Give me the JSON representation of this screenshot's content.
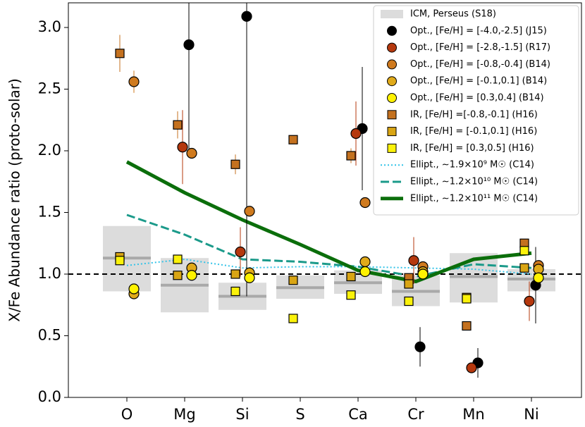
{
  "chart_data": {
    "type": "scatter",
    "y_label": "X/Fe Abundance ratio (proto-solar)",
    "categories": [
      "O",
      "Mg",
      "Si",
      "S",
      "Ca",
      "Cr",
      "Mn",
      "Ni"
    ],
    "ylim": [
      0,
      3.2
    ],
    "yticks": [
      {
        "value": 0,
        "label": "0.0"
      },
      0.5,
      {
        "value": 1,
        "label": "1.0"
      },
      1.5,
      {
        "value": 2,
        "label": "2.0"
      },
      2.5,
      {
        "value": 3,
        "label": "3.0"
      }
    ],
    "reference_line": 1,
    "series": [
      {
        "name": "ICM, Perseus (S18)",
        "kind": "box",
        "color": "#dcdcdc",
        "median_color": "#a9a9a9",
        "values": [
          1.13,
          0.91,
          0.82,
          0.89,
          0.93,
          0.86,
          0.98,
          0.96
        ],
        "low": [
          0.86,
          0.69,
          0.71,
          0.8,
          0.84,
          0.74,
          0.77,
          0.86
        ],
        "high": [
          1.39,
          1.13,
          0.93,
          0.99,
          1.03,
          0.99,
          1.17,
          1.04
        ]
      },
      {
        "name": "Opt., [Fe/H] = [-4.0,-2.5] (J15)",
        "kind": "point",
        "marker": "circle",
        "color": "#000000",
        "values": [
          null,
          2.86,
          3.09,
          null,
          2.18,
          0.41,
          0.28,
          0.91
        ],
        "errors": [
          null,
          0.86,
          2.27,
          null,
          0.5,
          0.16,
          0.12,
          0.31
        ]
      },
      {
        "name": "Opt., [Fe/H] = [-2.8,-1.5] (R17)",
        "kind": "point",
        "marker": "circle",
        "color": "#b5380e",
        "values": [
          null,
          2.03,
          1.18,
          null,
          2.14,
          1.11,
          0.24,
          0.78
        ],
        "errors": [
          null,
          0.3,
          0.2,
          null,
          0.26,
          0.19,
          null,
          0.16
        ]
      },
      {
        "name": "Opt., [Fe/H] = [-0.8,-0.4] (B14)",
        "kind": "point",
        "marker": "circle",
        "color": "#cf7a1e",
        "values": [
          2.56,
          1.98,
          1.51,
          null,
          1.58,
          1.06,
          null,
          1.07
        ],
        "errors": [
          0.09,
          null,
          null,
          null,
          null,
          null,
          null,
          null
        ]
      },
      {
        "name": "Opt., [Fe/H] = [-0.1,0.1] (B14)",
        "kind": "point",
        "marker": "circle",
        "color": "#e0aa1a",
        "values": [
          0.84,
          1.05,
          1.01,
          null,
          1.1,
          1.02,
          null,
          1.04
        ]
      },
      {
        "name": "Opt., [Fe/H] = [0.3,0.4] (B14)",
        "kind": "point",
        "marker": "circle",
        "color": "#fff200",
        "values": [
          0.88,
          0.99,
          0.97,
          null,
          1.02,
          1.0,
          null,
          0.97
        ]
      },
      {
        "name": "IR, [Fe/H] =[-0.8,-0.1] (H16)",
        "kind": "point",
        "marker": "square",
        "color": "#c4711f",
        "values": [
          2.79,
          2.21,
          1.89,
          2.09,
          1.96,
          0.97,
          0.58,
          1.25
        ],
        "errors": [
          0.15,
          0.11,
          0.08,
          null,
          0.06,
          null,
          null,
          null
        ]
      },
      {
        "name": "IR, [Fe/H] = [-0.1,0.1] (H16)",
        "kind": "point",
        "marker": "square",
        "color": "#d9a514",
        "values": [
          1.14,
          0.99,
          1.0,
          0.95,
          0.98,
          0.92,
          0.81,
          1.05
        ]
      },
      {
        "name": "IR, [Fe/H] = [0.3,0.5] (H16)",
        "kind": "point",
        "marker": "square",
        "color": "#fbf20a",
        "values": [
          1.11,
          1.12,
          0.86,
          0.64,
          0.83,
          0.78,
          0.8,
          1.19
        ]
      },
      {
        "name": "Ellipt., ∼1.9×10⁹ M☉ (C14)",
        "kind": "line",
        "dash": "dotted",
        "color": "#33c3e8",
        "values": [
          1.07,
          1.12,
          1.05,
          1.06,
          1.06,
          1.05,
          1.04,
          1.0
        ]
      },
      {
        "name": "Ellipt., ∼1.2×10¹⁰ M☉ (C14)",
        "kind": "line",
        "dash": "dashed",
        "color": "#1b9a8a",
        "values": [
          1.48,
          1.32,
          1.12,
          1.1,
          1.06,
          0.98,
          1.08,
          1.05
        ]
      },
      {
        "name": "Ellipt., ∼1.2×10¹¹ M☉ (C14)",
        "kind": "line",
        "dash": "solid",
        "color": "#0b6e0b",
        "values": [
          1.91,
          1.66,
          1.44,
          1.24,
          1.03,
          0.94,
          1.12,
          1.17
        ]
      }
    ]
  }
}
